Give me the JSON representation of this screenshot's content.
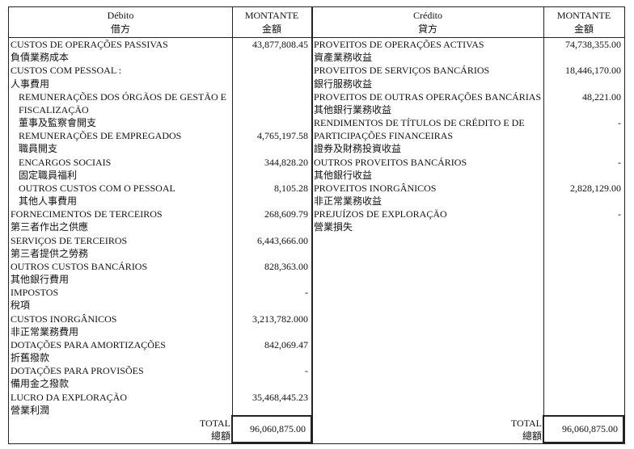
{
  "debit": {
    "header": {
      "title": "Débito",
      "title_zh": "借方",
      "amount": "MONTANTE",
      "amount_zh": "金額"
    },
    "items": [
      {
        "lines": [
          "CUSTOS DE OPERAÇÕES PASSIVAS",
          "負債業務成本"
        ],
        "amount": "43,877,808.45",
        "indent": false
      },
      {
        "lines": [
          "CUSTOS COM PESSOAL :",
          "人事費用"
        ],
        "amount": "",
        "indent": false
      },
      {
        "lines": [
          "REMUNERAÇÕES DOS ÓRGÃOS DE GESTÃO E",
          "FISCALIZAÇÃO",
          "董事及監察會開支"
        ],
        "amount": "",
        "indent": true
      },
      {
        "lines": [
          "REMUNERAÇÕES DE EMPREGADOS",
          "職員開支"
        ],
        "amount": "4,765,197.58",
        "indent": true
      },
      {
        "lines": [
          "ENCARGOS SOCIAIS",
          "固定職員福利"
        ],
        "amount": "344,828.20",
        "indent": true
      },
      {
        "lines": [
          "OUTROS CUSTOS COM O PESSOAL",
          "其他人事費用"
        ],
        "amount": "8,105.28",
        "indent": true
      },
      {
        "lines": [
          "FORNECIMENTOS DE TERCEIROS",
          "第三者作出之供應"
        ],
        "amount": "268,609.79",
        "indent": false
      },
      {
        "lines": [
          "SERVIÇOS DE TERCEIROS",
          "第三者提供之勞務"
        ],
        "amount": "6,443,666.00",
        "indent": false
      },
      {
        "lines": [
          "OUTROS CUSTOS BANCÁRIOS",
          "其他銀行費用"
        ],
        "amount": "828,363.00",
        "indent": false
      },
      {
        "lines": [
          "IMPOSTOS",
          "稅項"
        ],
        "amount": "-",
        "indent": false
      },
      {
        "lines": [
          "CUSTOS INORGÂNICOS",
          "非正常業務費用"
        ],
        "amount": "3,213,782.000",
        "indent": false
      },
      {
        "lines": [
          "DOTAÇÕES PARA AMORTIZAÇÕES",
          "折舊撥款"
        ],
        "amount": "842,069.47",
        "indent": false
      },
      {
        "lines": [
          "DOTAÇÕES PARA PROVISÕES",
          "備用金之撥款"
        ],
        "amount": "-",
        "indent": false
      },
      {
        "lines": [
          "LUCRO DA EXPLORAÇÃO",
          "營業利潤"
        ],
        "amount": "35,468,445.23",
        "indent": false
      }
    ],
    "total": {
      "label": "TOTAL",
      "label_zh": "總額",
      "amount": "96,060,875.00"
    }
  },
  "credit": {
    "header": {
      "title": "Crédito",
      "title_zh": "貸方",
      "amount": "MONTANTE",
      "amount_zh": "金額"
    },
    "items": [
      {
        "lines": [
          "PROVEITOS DE OPERAÇÕES ACTIVAS",
          "資產業務收益"
        ],
        "amount": "74,738,355.00",
        "indent": false
      },
      {
        "lines": [
          "PROVEITOS DE SERVIÇOS BANCÁRIOS",
          "銀行服務收益"
        ],
        "amount": "18,446,170.00",
        "indent": false
      },
      {
        "lines": [
          "PROVEITOS DE OUTRAS OPERAÇÕES BANCÁRIAS",
          "其他銀行業務收益"
        ],
        "amount": "48,221.00",
        "indent": false
      },
      {
        "lines": [
          "RENDIMENTOS DE TÍTULOS DE CRÉDITO E DE",
          "PARTICIPAÇÕES FINANCEIRAS",
          "證券及財務投資收益"
        ],
        "amount": "-",
        "indent": false
      },
      {
        "lines": [
          "OUTROS PROVEITOS BANCÁRIOS",
          "其他銀行收益"
        ],
        "amount": "-",
        "indent": false
      },
      {
        "lines": [
          "PROVEITOS INORGÂNICOS",
          "非正常業務收益"
        ],
        "amount": "2,828,129.00",
        "indent": false
      },
      {
        "lines": [
          "PREJUÍZOS DE EXPLORAÇÃO",
          "營業損失"
        ],
        "amount": "-",
        "indent": false
      }
    ],
    "total": {
      "label": "TOTAL",
      "label_zh": "總額",
      "amount": "96,060,875.00"
    }
  }
}
